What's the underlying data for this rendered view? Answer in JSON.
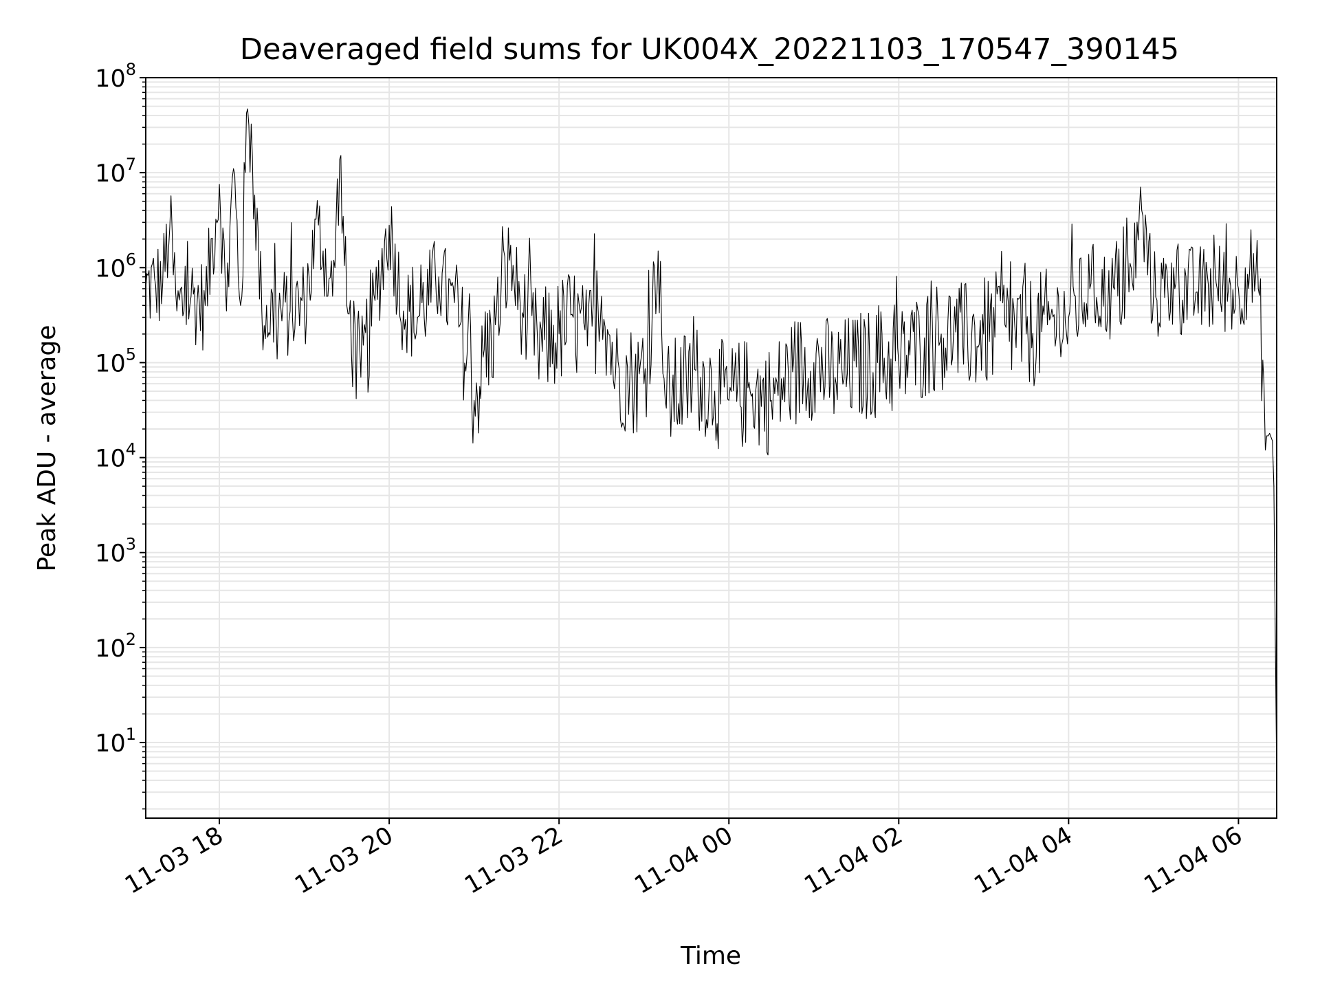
{
  "chart_data": {
    "type": "line",
    "title": "Deaveraged field sums for UK004X_20221103_170547_390145",
    "xlabel": "Time",
    "ylabel": "Peak ADU - average",
    "yscale": "log",
    "ylim": [
      1.6,
      100000000
    ],
    "xlim": [
      "11-03 17:08",
      "11-04 06:27"
    ],
    "grid": true,
    "line_color": "#000000",
    "grid_color": "#e6e6e6",
    "x_ticks": [
      {
        "t": "11-03 18:00",
        "label": "11-03 18"
      },
      {
        "t": "11-03 20:00",
        "label": "11-03 20"
      },
      {
        "t": "11-03 22:00",
        "label": "11-03 22"
      },
      {
        "t": "11-04 00:00",
        "label": "11-04 00"
      },
      {
        "t": "11-04 02:00",
        "label": "11-04 02"
      },
      {
        "t": "11-04 04:00",
        "label": "11-04 04"
      },
      {
        "t": "11-04 06:00",
        "label": "11-04 06"
      }
    ],
    "y_ticks": [
      {
        "value": 10,
        "base": "10",
        "exp": "1"
      },
      {
        "value": 100,
        "base": "10",
        "exp": "2"
      },
      {
        "value": 1000,
        "base": "10",
        "exp": "3"
      },
      {
        "value": 10000,
        "base": "10",
        "exp": "4"
      },
      {
        "value": 100000,
        "base": "10",
        "exp": "5"
      },
      {
        "value": 1000000,
        "base": "10",
        "exp": "6"
      },
      {
        "value": 10000000,
        "base": "10",
        "exp": "7"
      },
      {
        "value": 100000000,
        "base": "10",
        "exp": "8"
      }
    ],
    "series": [
      {
        "points": [
          [
            "11-03 17:08",
            600000
          ],
          [
            "11-03 17:15",
            650000
          ],
          [
            "11-03 17:20",
            700000
          ],
          [
            "11-03 17:25",
            2700000
          ],
          [
            "11-03 17:30",
            350000
          ],
          [
            "11-03 17:40",
            500000
          ],
          [
            "11-03 17:50",
            400000
          ],
          [
            "11-03 18:00",
            7500000
          ],
          [
            "11-03 18:05",
            350000
          ],
          [
            "11-03 18:10",
            11000000
          ],
          [
            "11-03 18:15",
            400000
          ],
          [
            "11-03 18:20",
            47000000
          ],
          [
            "11-03 18:25",
            5800000
          ],
          [
            "11-03 18:30",
            350000
          ],
          [
            "11-03 18:40",
            300000
          ],
          [
            "11-03 18:50",
            350000
          ],
          [
            "11-03 19:00",
            400000
          ],
          [
            "11-03 19:10",
            2800000
          ],
          [
            "11-03 19:20",
            500000
          ],
          [
            "11-03 19:25",
            13800000
          ],
          [
            "11-03 19:30",
            400000
          ],
          [
            "11-03 19:40",
            70000
          ],
          [
            "11-03 19:50",
            450000
          ],
          [
            "11-03 20:00",
            2800000
          ],
          [
            "11-03 20:10",
            350000
          ],
          [
            "11-03 20:20",
            300000
          ],
          [
            "11-03 20:35",
            800000
          ],
          [
            "11-03 20:50",
            250000
          ],
          [
            "11-03 21:00",
            40000
          ],
          [
            "11-03 21:15",
            250000
          ],
          [
            "11-03 21:25",
            1200000
          ],
          [
            "11-03 21:35",
            300000
          ],
          [
            "11-03 21:45",
            150000
          ],
          [
            "11-03 22:00",
            200000
          ],
          [
            "11-03 22:10",
            300000
          ],
          [
            "11-03 22:20",
            150000
          ],
          [
            "11-03 22:30",
            500000
          ],
          [
            "11-03 22:40",
            80000
          ],
          [
            "11-03 22:50",
            70000
          ],
          [
            "11-03 23:00",
            60000
          ],
          [
            "11-03 23:10",
            1500000
          ],
          [
            "11-03 23:15",
            40000
          ],
          [
            "11-03 23:30",
            60000
          ],
          [
            "11-03 23:40",
            70000
          ],
          [
            "11-03 23:50",
            50000
          ],
          [
            "11-04 00:00",
            40000
          ],
          [
            "11-04 00:15",
            50000
          ],
          [
            "11-04 00:30",
            40000
          ],
          [
            "11-04 00:45",
            80000
          ],
          [
            "11-04 01:00",
            100000
          ],
          [
            "11-04 01:15",
            70000
          ],
          [
            "11-04 01:30",
            90000
          ],
          [
            "11-04 01:45",
            100000
          ],
          [
            "11-04 02:00",
            100000
          ],
          [
            "11-04 02:15",
            150000
          ],
          [
            "11-04 02:30",
            200000
          ],
          [
            "11-04 02:45",
            180000
          ],
          [
            "11-04 03:00",
            200000
          ],
          [
            "11-04 03:15",
            250000
          ],
          [
            "11-04 03:30",
            200000
          ],
          [
            "11-04 03:45",
            250000
          ],
          [
            "11-04 04:00",
            300000
          ],
          [
            "11-04 04:15",
            600000
          ],
          [
            "11-04 04:30",
            500000
          ],
          [
            "11-04 04:45",
            700000
          ],
          [
            "11-04 04:50",
            4000000
          ],
          [
            "11-04 05:00",
            500000
          ],
          [
            "11-04 05:15",
            600000
          ],
          [
            "11-04 05:30",
            550000
          ],
          [
            "11-04 05:45",
            600000
          ],
          [
            "11-04 06:00",
            600000
          ],
          [
            "11-04 06:08",
            1000000
          ],
          [
            "11-04 06:14",
            600000
          ],
          [
            "11-04 06:18",
            60000
          ],
          [
            "11-04 06:19",
            12000
          ],
          [
            "11-04 06:22",
            18000
          ],
          [
            "11-04 06:24",
            15000
          ],
          [
            "11-04 06:25",
            5000
          ],
          [
            "11-04 06:27",
            4
          ]
        ]
      }
    ]
  }
}
